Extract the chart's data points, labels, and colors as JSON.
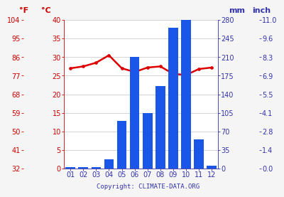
{
  "months": [
    "01",
    "02",
    "03",
    "04",
    "05",
    "06",
    "07",
    "08",
    "09",
    "10",
    "11",
    "12"
  ],
  "precip_mm": [
    2,
    2,
    3,
    18,
    90,
    210,
    105,
    155,
    265,
    280,
    55,
    5
  ],
  "temp_c": [
    27.0,
    27.5,
    28.5,
    30.5,
    27.0,
    26.0,
    27.2,
    27.5,
    25.5,
    25.2,
    26.8,
    27.2
  ],
  "bar_color": "#1a56e8",
  "line_color": "#dd0000",
  "left_f_ticks": [
    32,
    41,
    50,
    59,
    68,
    77,
    86,
    95,
    104
  ],
  "left_c_ticks": [
    0,
    5,
    10,
    15,
    20,
    25,
    30,
    35,
    40
  ],
  "right_mm_ticks": [
    0,
    35,
    70,
    105,
    140,
    175,
    210,
    245,
    280
  ],
  "right_inch_ticks": [
    "0.0",
    "1.4",
    "2.8",
    "4.1",
    "5.5",
    "6.9",
    "8.3",
    "9.6",
    "11.0"
  ],
  "ylabel_left_f": "°F",
  "ylabel_left_c": "°C",
  "ylabel_right_mm": "mm",
  "ylabel_right_inch": "inch",
  "copyright": "Copyright: CLIMATE-DATA.ORG",
  "bg_color": "#f5f5f5",
  "plot_bg_color": "#ffffff",
  "grid_color": "#cccccc",
  "axis_color": "#3333aa",
  "temp_axis_color": "#cc0000",
  "precip_max_mm": 280,
  "temp_c_min": 0,
  "temp_c_max": 40
}
